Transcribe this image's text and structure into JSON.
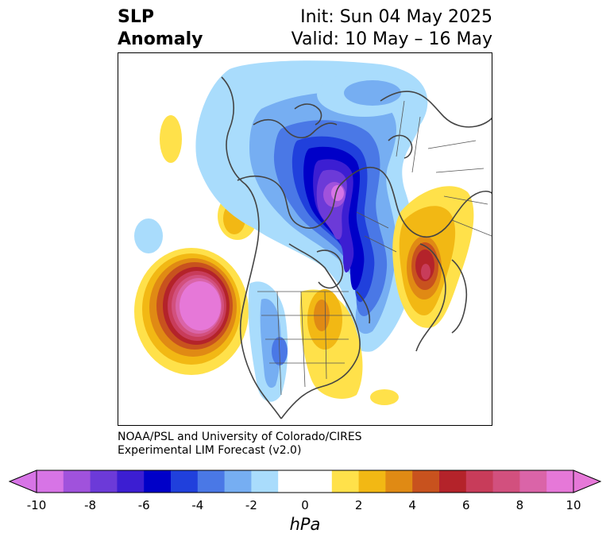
{
  "title": {
    "line1": "SLP",
    "line2": "Anomaly"
  },
  "init": "Init: Sun 04 May 2025",
  "valid": "Valid: 10 May – 16 May",
  "credit": {
    "line1": "NOAA/PSL and University of Colorado/CIRES",
    "line2": "Experimental LIM Forecast (v2.0)"
  },
  "colorbar": {
    "unit": "hPa",
    "ticks": [
      "-10",
      "-8",
      "-6",
      "-4",
      "-2",
      "0",
      "2",
      "4",
      "6",
      "8",
      "10"
    ],
    "colors": [
      "#d774e6",
      "#a052dc",
      "#6c3ad8",
      "#3c1ed2",
      "#0000c8",
      "#2040dc",
      "#4a78e6",
      "#76aef2",
      "#a9dcfc",
      "#ffffff",
      "#ffffff",
      "#ffe14a",
      "#f2b814",
      "#e08a14",
      "#c8521e",
      "#b4232a",
      "#c83c5a",
      "#d2507e",
      "#da64a8",
      "#e678d8"
    ],
    "extend_low": "#d774e6",
    "extend_high": "#e678d8"
  }
}
